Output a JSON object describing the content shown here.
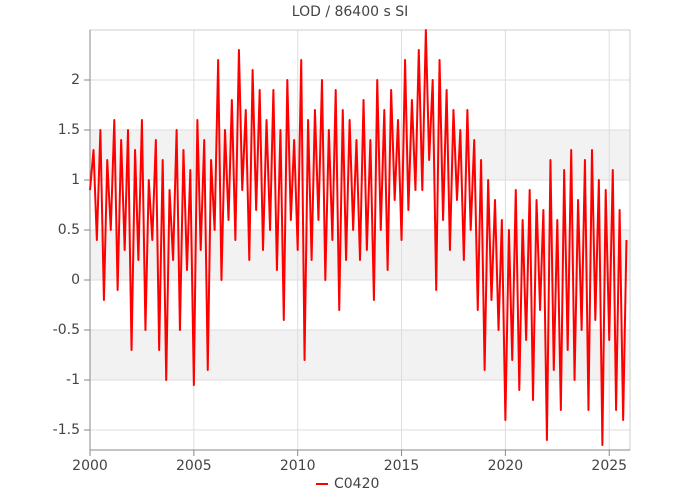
{
  "chart_data": {
    "type": "line",
    "title": "LOD / 86400 s SI",
    "x": [
      2000.0,
      2000.17,
      2000.33,
      2000.5,
      2000.67,
      2000.83,
      2001.0,
      2001.17,
      2001.33,
      2001.5,
      2001.67,
      2001.83,
      2002.0,
      2002.17,
      2002.33,
      2002.5,
      2002.67,
      2002.83,
      2003.0,
      2003.17,
      2003.33,
      2003.5,
      2003.67,
      2003.83,
      2004.0,
      2004.17,
      2004.33,
      2004.5,
      2004.67,
      2004.83,
      2005.0,
      2005.17,
      2005.33,
      2005.5,
      2005.67,
      2005.83,
      2006.0,
      2006.17,
      2006.33,
      2006.5,
      2006.67,
      2006.83,
      2007.0,
      2007.17,
      2007.33,
      2007.5,
      2007.67,
      2007.83,
      2008.0,
      2008.17,
      2008.33,
      2008.5,
      2008.67,
      2008.83,
      2009.0,
      2009.17,
      2009.33,
      2009.5,
      2009.67,
      2009.83,
      2010.0,
      2010.17,
      2010.33,
      2010.5,
      2010.67,
      2010.83,
      2011.0,
      2011.17,
      2011.33,
      2011.5,
      2011.67,
      2011.83,
      2012.0,
      2012.17,
      2012.33,
      2012.5,
      2012.67,
      2012.83,
      2013.0,
      2013.17,
      2013.33,
      2013.5,
      2013.67,
      2013.83,
      2014.0,
      2014.17,
      2014.33,
      2014.5,
      2014.67,
      2014.83,
      2015.0,
      2015.17,
      2015.33,
      2015.5,
      2015.67,
      2015.83,
      2016.0,
      2016.17,
      2016.33,
      2016.5,
      2016.67,
      2016.83,
      2017.0,
      2017.17,
      2017.33,
      2017.5,
      2017.67,
      2017.83,
      2018.0,
      2018.17,
      2018.33,
      2018.5,
      2018.67,
      2018.83,
      2019.0,
      2019.17,
      2019.33,
      2019.5,
      2019.67,
      2019.83,
      2020.0,
      2020.17,
      2020.33,
      2020.5,
      2020.67,
      2020.83,
      2021.0,
      2021.17,
      2021.33,
      2021.5,
      2021.67,
      2021.83,
      2022.0,
      2022.17,
      2022.33,
      2022.5,
      2022.67,
      2022.83,
      2023.0,
      2023.17,
      2023.33,
      2023.5,
      2023.67,
      2023.83,
      2024.0,
      2024.17,
      2024.33,
      2024.5,
      2024.67,
      2024.83,
      2025.0,
      2025.17,
      2025.33,
      2025.5,
      2025.67,
      2025.83
    ],
    "series": [
      {
        "name": "C0420",
        "color": "#ff0000",
        "values": [
          0.9,
          1.3,
          0.4,
          1.5,
          -0.2,
          1.2,
          0.5,
          1.6,
          -0.1,
          1.4,
          0.3,
          1.5,
          -0.7,
          1.3,
          0.2,
          1.6,
          -0.5,
          1.0,
          0.4,
          1.4,
          -0.7,
          1.2,
          -1.0,
          0.9,
          0.2,
          1.5,
          -0.5,
          1.3,
          0.1,
          1.1,
          -1.05,
          1.6,
          0.3,
          1.4,
          -0.9,
          1.2,
          0.5,
          2.2,
          0.0,
          1.5,
          0.6,
          1.8,
          0.4,
          2.3,
          0.9,
          1.7,
          0.2,
          2.1,
          0.7,
          1.9,
          0.3,
          1.6,
          0.5,
          1.9,
          0.1,
          1.5,
          -0.4,
          2.0,
          0.6,
          1.4,
          0.3,
          2.2,
          -0.8,
          1.6,
          0.2,
          1.7,
          0.6,
          2.0,
          0.0,
          1.5,
          0.4,
          1.9,
          -0.3,
          1.7,
          0.2,
          1.6,
          0.5,
          1.4,
          0.2,
          1.8,
          0.3,
          1.4,
          -0.2,
          2.0,
          0.5,
          1.7,
          0.1,
          1.9,
          0.8,
          1.6,
          0.4,
          2.2,
          0.7,
          1.8,
          0.9,
          2.3,
          0.9,
          2.5,
          1.2,
          2.0,
          -0.1,
          2.2,
          0.6,
          1.9,
          0.3,
          1.7,
          0.8,
          1.5,
          0.2,
          1.7,
          0.5,
          1.4,
          -0.3,
          1.2,
          -0.9,
          1.0,
          -0.2,
          0.8,
          -0.5,
          0.6,
          -1.4,
          0.5,
          -0.8,
          0.9,
          -1.1,
          0.6,
          -0.6,
          0.9,
          -1.2,
          0.8,
          -0.3,
          0.7,
          -1.6,
          1.2,
          -0.9,
          0.6,
          -1.3,
          1.1,
          -0.7,
          1.3,
          -1.0,
          0.8,
          -0.5,
          1.2,
          -1.3,
          1.3,
          -0.4,
          1.0,
          -1.65,
          0.9,
          -0.6,
          1.1,
          -1.3,
          0.7,
          -1.4,
          0.4
        ]
      }
    ],
    "xlim": [
      2000,
      2026
    ],
    "xticks": [
      2000,
      2005,
      2010,
      2015,
      2020,
      2025
    ],
    "ylim": [
      -1.7,
      2.5
    ],
    "yticks": [
      -1.5,
      -1,
      -0.5,
      0,
      0.5,
      1,
      1.5,
      2
    ],
    "grid": true,
    "alternate_bands": true,
    "legend": "bottom"
  }
}
